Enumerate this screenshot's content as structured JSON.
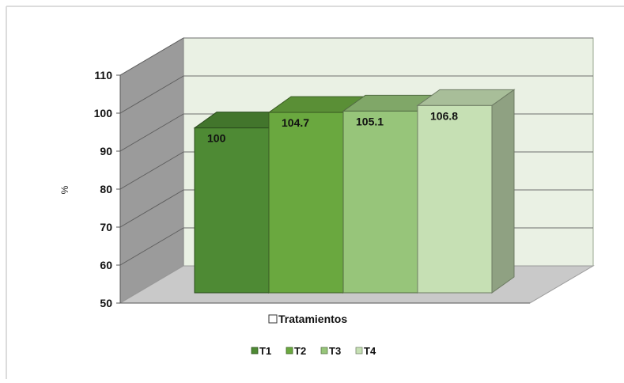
{
  "chart_data": {
    "type": "bar",
    "title": "",
    "xlabel": "Tratamientos",
    "ylabel": "%",
    "ylim": [
      50,
      110
    ],
    "yticks": [
      50,
      60,
      70,
      80,
      90,
      100,
      110
    ],
    "grid": true,
    "legend_position": "bottom",
    "categories": [
      "Tratamientos"
    ],
    "series": [
      {
        "name": "T1",
        "values": [
          100
        ],
        "label": "100",
        "color": "#4e8a34"
      },
      {
        "name": "T2",
        "values": [
          104.7
        ],
        "label": "104.7",
        "color": "#6aa83f"
      },
      {
        "name": "T3",
        "values": [
          105.1
        ],
        "label": "105.1",
        "color": "#97c57a"
      },
      {
        "name": "T4",
        "values": [
          106.8
        ],
        "label": "106.8",
        "color": "#c6e0b4"
      }
    ]
  }
}
